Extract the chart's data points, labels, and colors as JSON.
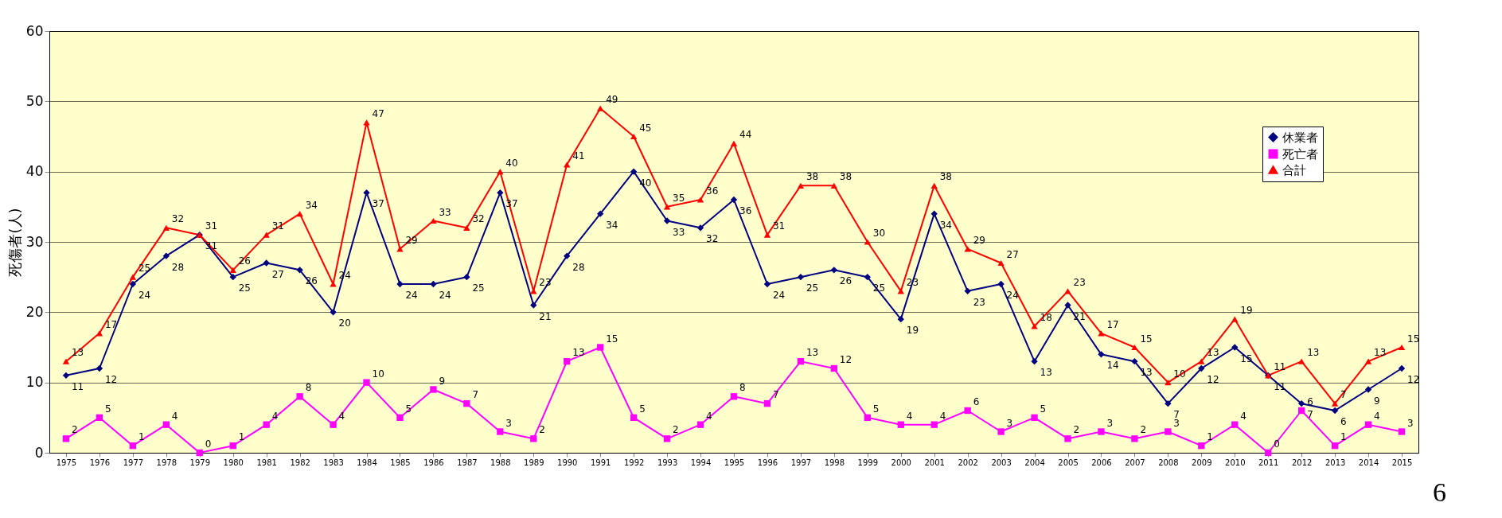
{
  "chart_data": {
    "type": "line",
    "ylabel": "死傷者(人)",
    "categories": [
      "1975",
      "1976",
      "1977",
      "1978",
      "1979",
      "1980",
      "1981",
      "1982",
      "1983",
      "1984",
      "1985",
      "1986",
      "1987",
      "1988",
      "1989",
      "1990",
      "1991",
      "1992",
      "1993",
      "1994",
      "1995",
      "1996",
      "1997",
      "1998",
      "1999",
      "2000",
      "2001",
      "2002",
      "2003",
      "2004",
      "2005",
      "2006",
      "2007",
      "2008",
      "2009",
      "2010",
      "2011",
      "2012",
      "2013",
      "2014",
      "2015"
    ],
    "series": [
      {
        "name": "休業者",
        "color": "#000080",
        "marker": "diamond",
        "values": [
          11,
          12,
          24,
          28,
          31,
          25,
          27,
          26,
          20,
          37,
          24,
          24,
          25,
          37,
          21,
          28,
          34,
          40,
          33,
          32,
          36,
          24,
          25,
          26,
          25,
          19,
          34,
          23,
          24,
          13,
          21,
          14,
          13,
          7,
          12,
          15,
          11,
          7,
          6,
          9,
          12
        ]
      },
      {
        "name": "死亡者",
        "color": "#ff00ff",
        "marker": "square",
        "values": [
          2,
          5,
          1,
          4,
          0,
          1,
          4,
          8,
          4,
          10,
          5,
          9,
          7,
          3,
          2,
          13,
          15,
          5,
          2,
          4,
          8,
          7,
          13,
          12,
          5,
          4,
          4,
          6,
          3,
          5,
          2,
          3,
          2,
          3,
          1,
          4,
          0,
          6,
          1,
          4,
          3
        ]
      },
      {
        "name": "合計",
        "color": "#ff0000",
        "marker": "triangle",
        "values": [
          13,
          17,
          25,
          32,
          31,
          26,
          31,
          34,
          24,
          47,
          29,
          33,
          32,
          40,
          23,
          41,
          49,
          45,
          35,
          36,
          44,
          31,
          38,
          38,
          30,
          23,
          38,
          29,
          27,
          18,
          23,
          17,
          15,
          10,
          13,
          19,
          11,
          13,
          7,
          13,
          15
        ]
      }
    ],
    "ylim": [
      0,
      60
    ],
    "yticks": [
      0,
      10,
      20,
      30,
      40,
      50,
      60
    ],
    "grid": "y",
    "legend": "top right",
    "data_labels": true,
    "annotations": [
      "6"
    ]
  }
}
